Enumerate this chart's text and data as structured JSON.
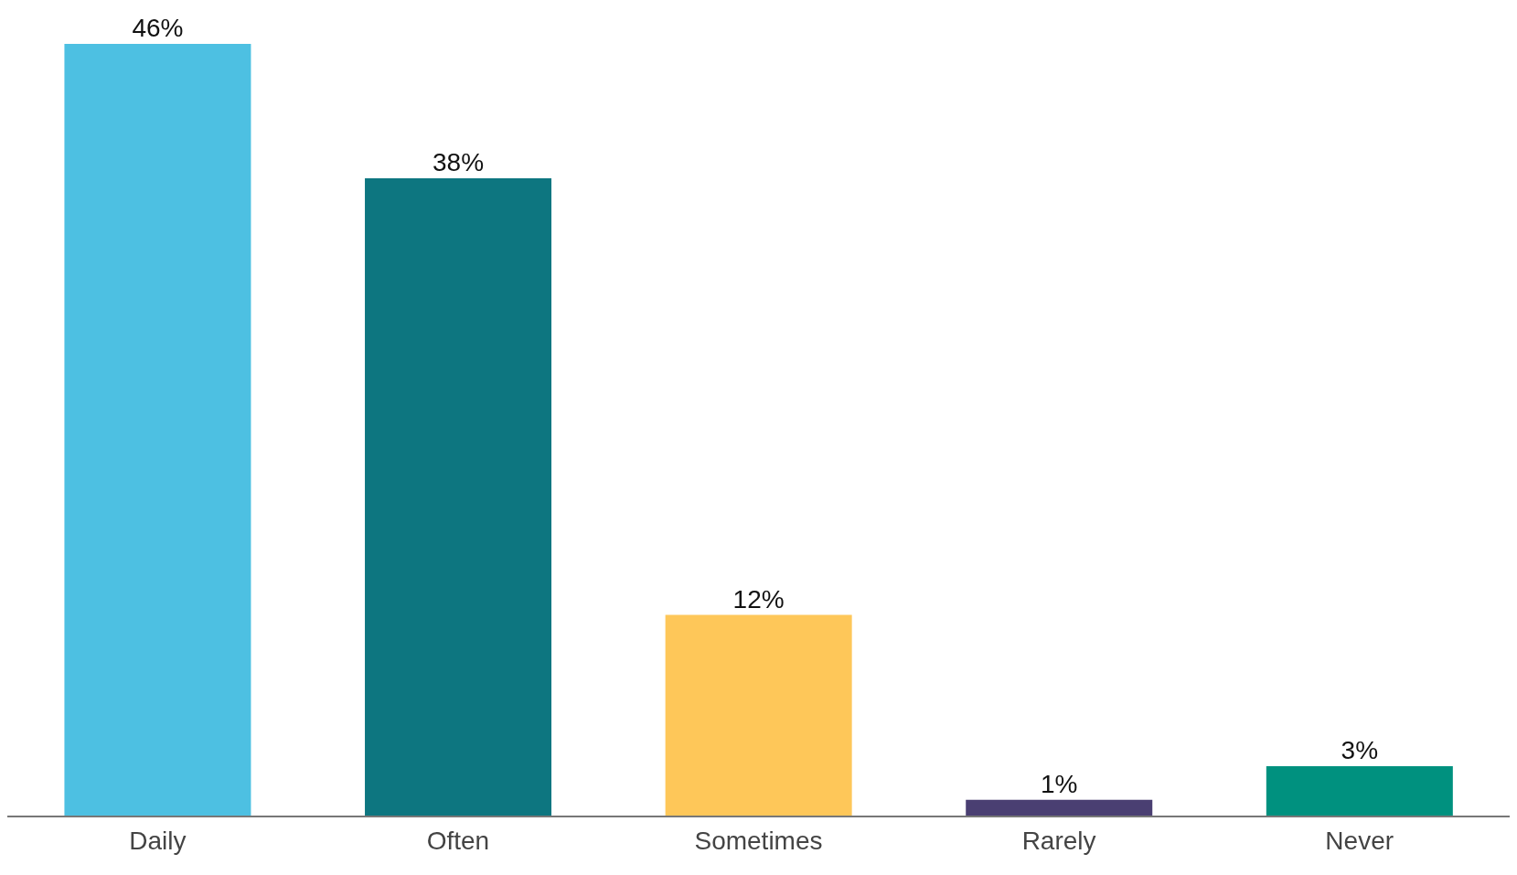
{
  "chart_data": {
    "type": "bar",
    "categories": [
      "Daily",
      "Often",
      "Sometimes",
      "Rarely",
      "Never"
    ],
    "values": [
      46,
      38,
      12,
      1,
      3
    ],
    "colors": [
      "#4dc0e2",
      "#0d7680",
      "#fec759",
      "#4a3f72",
      "#00917f"
    ],
    "value_labels": [
      "46%",
      "38%",
      "12%",
      "1%",
      "3%"
    ]
  }
}
